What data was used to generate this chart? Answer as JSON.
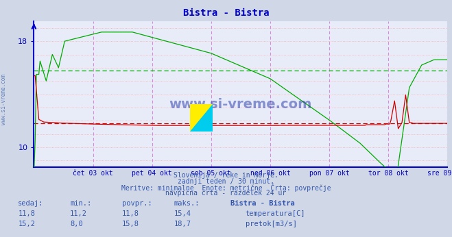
{
  "title": "Bistra - Bistra",
  "title_color": "#0000cc",
  "bg_color": "#d0d8e8",
  "plot_bg_color": "#e8ecf8",
  "y_min": 8.5,
  "y_max": 19.5,
  "y_ticks": [
    10,
    18
  ],
  "temp_avg": 11.8,
  "flow_avg": 15.8,
  "temp_color": "#cc0000",
  "flow_color": "#00aa00",
  "grid_h_color": "#ffaaaa",
  "grid_v_color": "#dd88dd",
  "axis_color": "#0000bb",
  "watermark": "www.si-vreme.com",
  "watermark_color": "#2233aa",
  "subtitle1": "Slovenija / reke in morje.",
  "subtitle2": "zadnji teden / 30 minut.",
  "subtitle3": "Meritve: minimalne  Enote: metrične  Črta: povprečje",
  "subtitle4": "navpična črta - razdelek 24 ur",
  "subtitle_color": "#3355aa",
  "label_sedaj": "sedaj:",
  "label_min": "min.:",
  "label_povpr": "povpr.:",
  "label_maks": "maks.:",
  "label_station": "Bistra - Bistra",
  "temp_sedaj": "11,8",
  "temp_min": "11,2",
  "temp_povpr": "11,8",
  "temp_maks": "15,4",
  "flow_sedaj": "15,2",
  "flow_min": "8,0",
  "flow_povpr": "15,8",
  "flow_maks": "18,7",
  "legend_temp": "temperatura[C]",
  "legend_flow": "pretok[m3/s]",
  "x_tick_labels": [
    "čet 03 okt",
    "pet 04 okt",
    "sob 05 okt",
    "ned 06 okt",
    "pon 07 okt",
    "tor 08 okt",
    "sre 09 okt"
  ],
  "x_tick_positions": [
    48,
    96,
    144,
    192,
    240,
    288,
    336
  ],
  "day_line_positions": [
    48,
    96,
    144,
    192,
    240,
    288,
    336
  ],
  "bottom_line_color": "#0000cc",
  "side_label": "www.si-vreme.com"
}
